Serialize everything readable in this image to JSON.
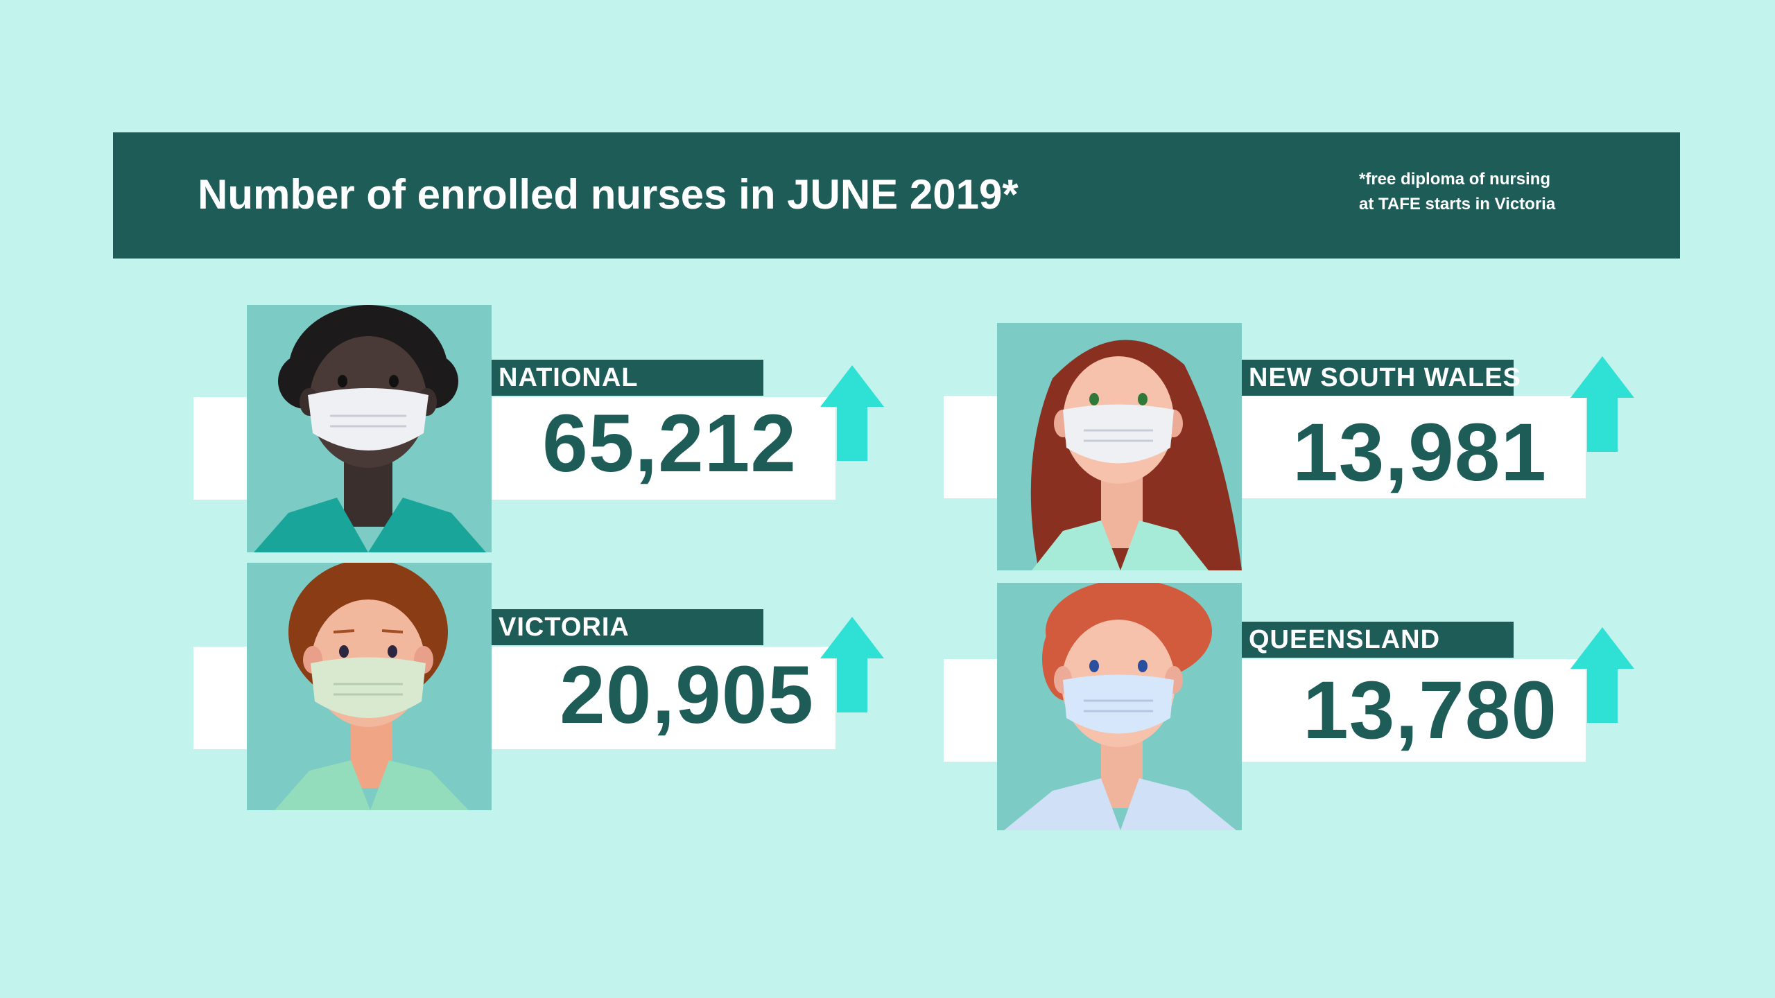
{
  "banner": {
    "title": "Number of enrolled nurses in JUNE 2019*",
    "note_line1": "*free diploma of nursing",
    "note_line2": "at TAFE starts in Victoria"
  },
  "stats": [
    {
      "region": "NATIONAL",
      "value": "65,212",
      "trend": "up"
    },
    {
      "region": "VICTORIA",
      "value": "20,905",
      "trend": "up"
    },
    {
      "region": "NEW SOUTH WALES",
      "value": "13,981",
      "trend": "up"
    },
    {
      "region": "QUEENSLAND",
      "value": "13,780",
      "trend": "up"
    }
  ],
  "colors": {
    "background": "#c2f3ed",
    "banner": "#1e5c58",
    "portrait_bg": "#7ccbc5",
    "arrow": "#2fe0d5",
    "text_dark": "#1e5c58"
  },
  "icons": [
    "nurse-portrait-icon",
    "up-arrow-icon"
  ]
}
